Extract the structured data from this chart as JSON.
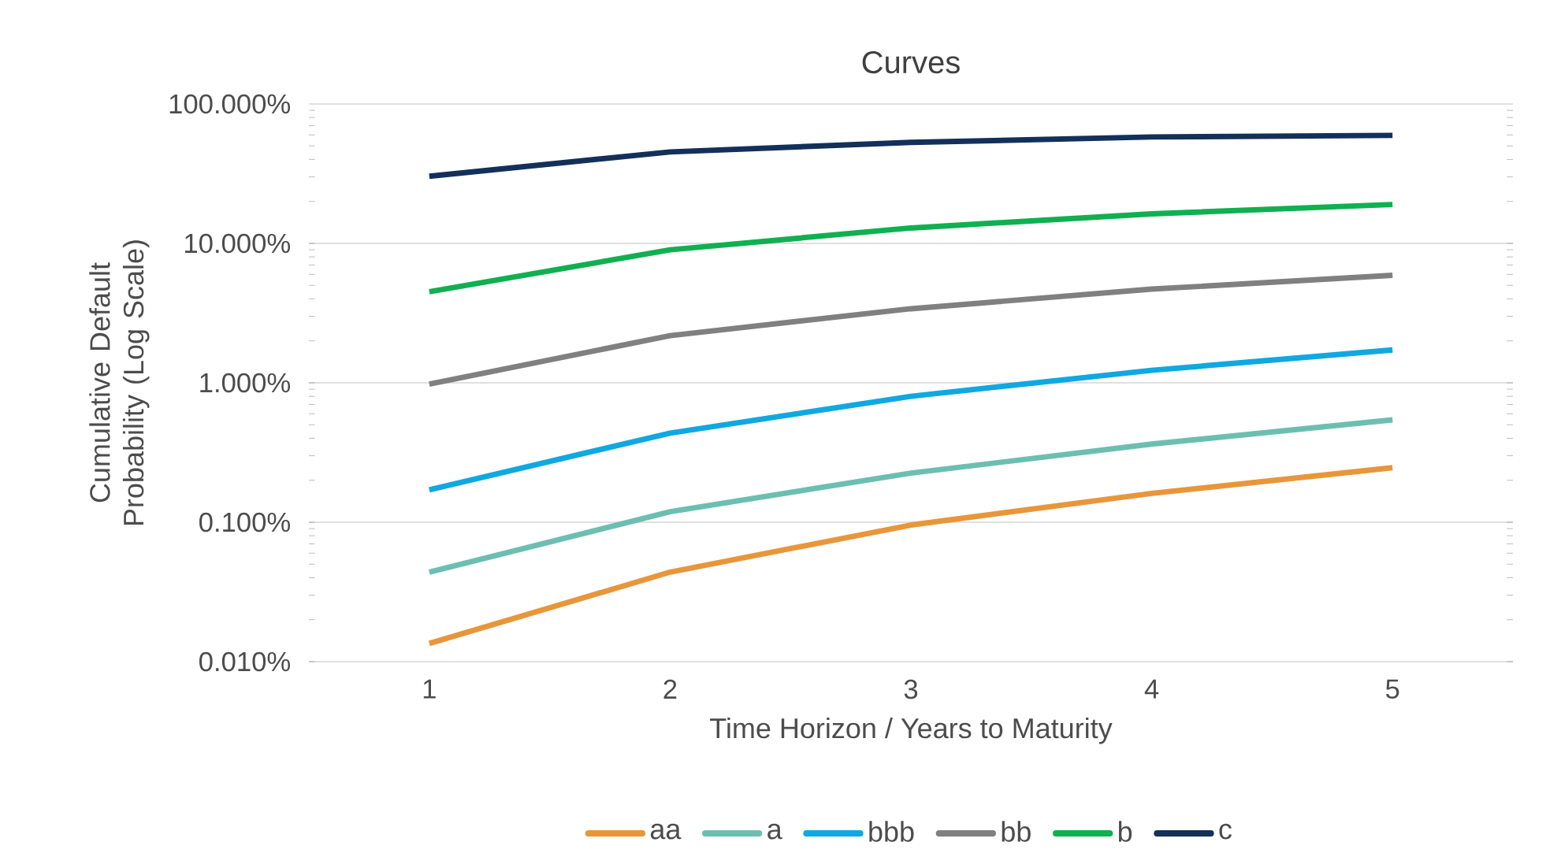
{
  "chart_data": {
    "type": "line",
    "title": "Curves",
    "xlabel": "Time Horizon / Years to Maturity",
    "ylabel": "Cumulative Default Probability (Log Scale)",
    "categories": [
      "1",
      "2",
      "3",
      "4",
      "5"
    ],
    "series": [
      {
        "name": "aa",
        "color": "#e8963a",
        "values": [
          0.0135,
          0.0439,
          0.0955,
          0.161,
          0.246
        ]
      },
      {
        "name": "a",
        "color": "#6cbfb0",
        "values": [
          0.0439,
          0.119,
          0.225,
          0.364,
          0.543
        ]
      },
      {
        "name": "bbb",
        "color": "#10a8e0",
        "values": [
          0.171,
          0.436,
          0.8,
          1.23,
          1.72
        ]
      },
      {
        "name": "bb",
        "color": "#808080",
        "values": [
          0.98,
          2.18,
          3.4,
          4.7,
          5.9
        ]
      },
      {
        "name": "b",
        "color": "#10b050",
        "values": [
          4.5,
          9.0,
          12.9,
          16.3,
          19.0
        ]
      },
      {
        "name": "c",
        "color": "#13305a",
        "values": [
          30.3,
          45.3,
          53.0,
          58.0,
          59.5
        ]
      }
    ],
    "log": true,
    "ylim": [
      0.01,
      100
    ],
    "yticks": [
      {
        "value": 0.01,
        "label": "0.010%"
      },
      {
        "value": 0.1,
        "label": "0.100%"
      },
      {
        "value": 1,
        "label": "1.000%"
      },
      {
        "value": 10,
        "label": "10.000%"
      },
      {
        "value": 100,
        "label": "100.000%"
      }
    ],
    "grid": "y",
    "legend": "bottom",
    "marker": "none",
    "line_style": "solid"
  }
}
